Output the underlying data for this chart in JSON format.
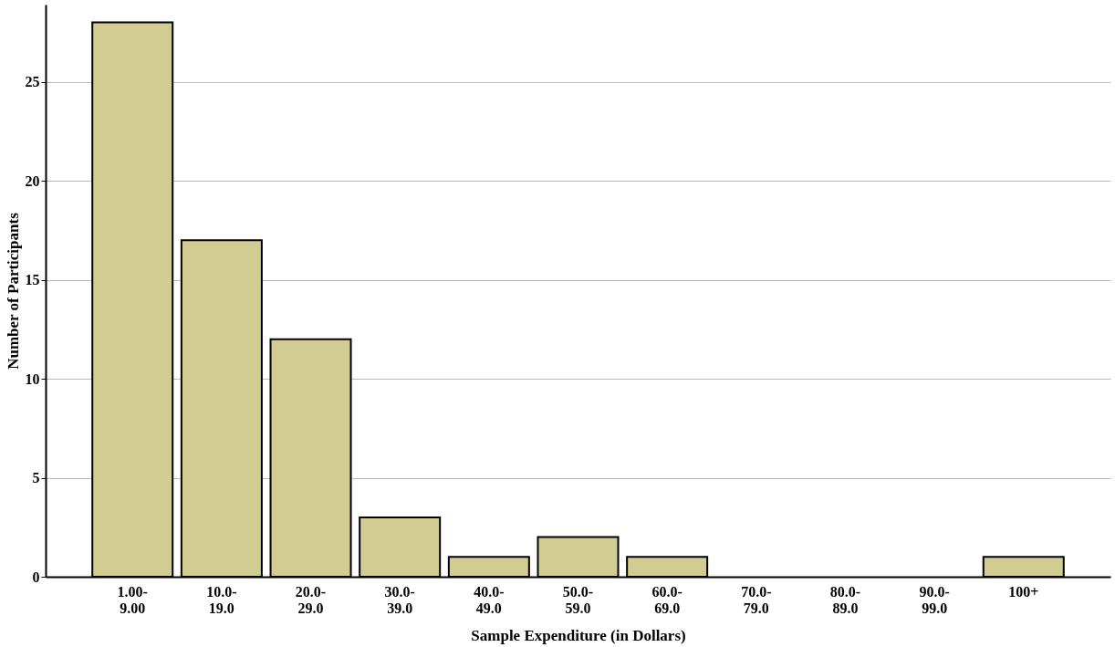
{
  "chart_data": {
    "type": "bar",
    "xlabel": "Sample Expenditure (in Dollars)",
    "ylabel": "Number of Participants",
    "categories": [
      "1.00-\n9.00",
      "10.0-\n19.0",
      "20.0-\n29.0",
      "30.0-\n39.0",
      "40.0-\n49.0",
      "50.0-\n59.0",
      "60.0-\n69.0",
      "70.0-\n79.0",
      "80.0-\n89.0",
      "90.0-\n99.0",
      "100+"
    ],
    "values": [
      28,
      17,
      12,
      3,
      1,
      2,
      1,
      0,
      0,
      0,
      1
    ],
    "color": "#d0cc92",
    "ylim": [
      0,
      28.9
    ],
    "yticks": [
      0,
      5,
      10,
      15,
      20,
      25
    ],
    "grid": "y"
  }
}
